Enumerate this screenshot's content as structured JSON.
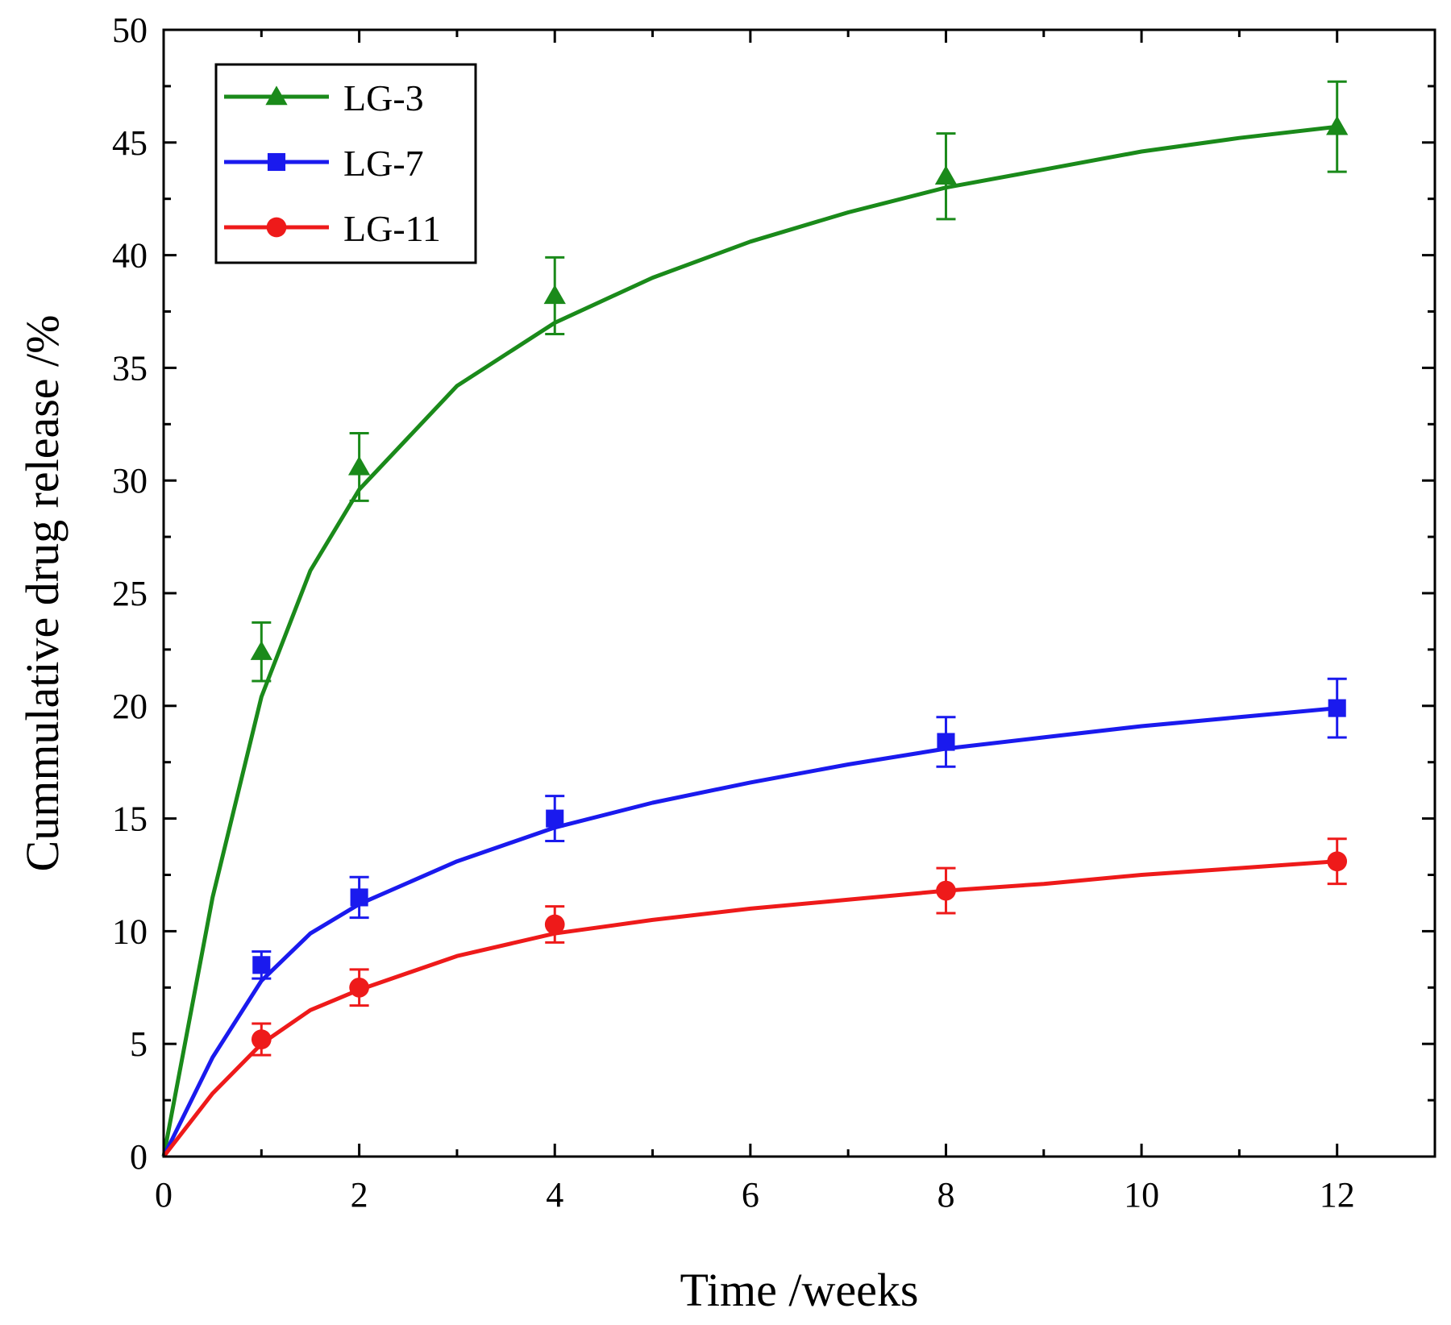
{
  "chart_data": {
    "type": "line",
    "title": "",
    "xlabel": "Time /weeks",
    "ylabel": "Cummulative drug release /%",
    "xlim": [
      0,
      13
    ],
    "ylim": [
      0,
      50
    ],
    "x_ticks": [
      "0",
      "2",
      "4",
      "6",
      "8",
      "10",
      "12"
    ],
    "y_ticks": [
      "0",
      "5",
      "10",
      "15",
      "20",
      "25",
      "30",
      "35",
      "40",
      "45",
      "50"
    ],
    "grid": false,
    "legend_position": "top-left",
    "error_bars": true,
    "series": [
      {
        "name": "LG-3",
        "color": "#1a8a1a",
        "marker": "triangle",
        "x": [
          0,
          1,
          2,
          4,
          8,
          12
        ],
        "y": [
          0,
          22.4,
          30.6,
          38.2,
          43.5,
          45.7
        ],
        "error": [
          0,
          1.3,
          1.5,
          1.7,
          1.9,
          2.0
        ],
        "fit": [
          [
            0,
            0
          ],
          [
            0.5,
            11.5
          ],
          [
            1,
            20.4
          ],
          [
            1.5,
            26.0
          ],
          [
            2,
            29.6
          ],
          [
            3,
            34.2
          ],
          [
            4,
            37.0
          ],
          [
            5,
            39.0
          ],
          [
            6,
            40.6
          ],
          [
            7,
            41.9
          ],
          [
            8,
            43.0
          ],
          [
            9,
            43.8
          ],
          [
            10,
            44.6
          ],
          [
            11,
            45.2
          ],
          [
            12,
            45.7
          ]
        ]
      },
      {
        "name": "LG-7",
        "color": "#1a1aee",
        "marker": "square",
        "x": [
          0,
          1,
          2,
          4,
          8,
          12
        ],
        "y": [
          0,
          8.5,
          11.5,
          15.0,
          18.4,
          19.9
        ],
        "error": [
          0,
          0.6,
          0.9,
          1.0,
          1.1,
          1.3
        ],
        "fit": [
          [
            0,
            0
          ],
          [
            0.5,
            4.4
          ],
          [
            1,
            7.8
          ],
          [
            1.5,
            9.9
          ],
          [
            2,
            11.2
          ],
          [
            3,
            13.1
          ],
          [
            4,
            14.6
          ],
          [
            5,
            15.7
          ],
          [
            6,
            16.6
          ],
          [
            7,
            17.4
          ],
          [
            8,
            18.1
          ],
          [
            9,
            18.6
          ],
          [
            10,
            19.1
          ],
          [
            11,
            19.5
          ],
          [
            12,
            19.9
          ]
        ]
      },
      {
        "name": "LG-11",
        "color": "#ee1a1a",
        "marker": "circle",
        "x": [
          0,
          1,
          2,
          4,
          8,
          12
        ],
        "y": [
          0,
          5.2,
          7.5,
          10.3,
          11.8,
          13.1
        ],
        "error": [
          0,
          0.7,
          0.8,
          0.8,
          1.0,
          1.0
        ],
        "fit": [
          [
            0,
            0
          ],
          [
            0.5,
            2.8
          ],
          [
            1,
            5.0
          ],
          [
            1.5,
            6.5
          ],
          [
            2,
            7.4
          ],
          [
            3,
            8.9
          ],
          [
            4,
            9.9
          ],
          [
            5,
            10.5
          ],
          [
            6,
            11.0
          ],
          [
            7,
            11.4
          ],
          [
            8,
            11.8
          ],
          [
            9,
            12.1
          ],
          [
            10,
            12.5
          ],
          [
            11,
            12.8
          ],
          [
            12,
            13.1
          ]
        ]
      }
    ]
  }
}
